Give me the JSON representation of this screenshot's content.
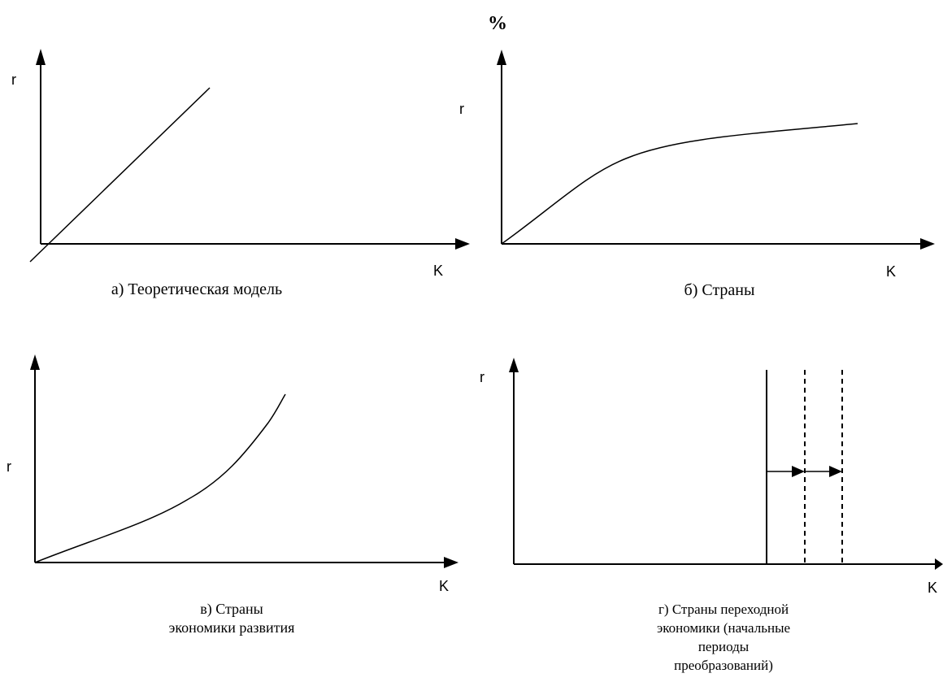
{
  "panels": {
    "a": {
      "y_label": "r",
      "x_label": "K",
      "caption": "а) Теоретическая модель"
    },
    "b": {
      "top_label": "%",
      "y_label": "r",
      "x_label": "K",
      "caption": "б) Страны"
    },
    "v": {
      "y_label": "r",
      "x_label": "K",
      "caption_line1": "в) Страны",
      "caption_line2": "экономики развития"
    },
    "g": {
      "y_label": "r",
      "x_label": "K",
      "caption_line1": "г) Страны переходной",
      "caption_line2": "экономики (начальные",
      "caption_line3": "периоды",
      "caption_line4": "преобразований)"
    }
  }
}
